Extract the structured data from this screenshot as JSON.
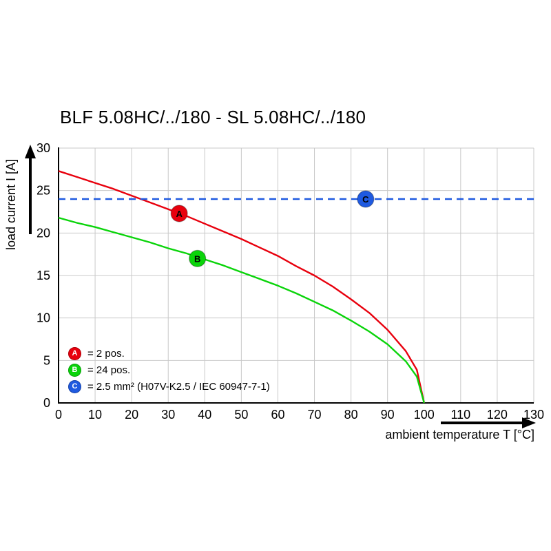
{
  "title": "BLF 5.08HC/../180 - SL 5.08HC/../180",
  "chart_data": {
    "type": "line",
    "title": "BLF 5.08HC/../180 - SL 5.08HC/../180",
    "xlabel": "ambient temperature T [°C]",
    "ylabel": "load current I [A]",
    "xlim": [
      0,
      130
    ],
    "ylim": [
      0,
      30
    ],
    "xticks": [
      0,
      10,
      20,
      30,
      40,
      50,
      60,
      70,
      80,
      90,
      100,
      110,
      120,
      130
    ],
    "yticks": [
      0,
      5,
      10,
      15,
      20,
      25,
      30
    ],
    "grid": true,
    "legend_position": "lower left",
    "series": [
      {
        "name": "A",
        "label": "= 2 pos.",
        "color": "#e8000d",
        "style": "solid",
        "x": [
          0,
          5,
          10,
          15,
          20,
          25,
          30,
          35,
          40,
          45,
          50,
          55,
          60,
          65,
          70,
          75,
          80,
          85,
          90,
          95,
          98,
          100
        ],
        "y": [
          27.3,
          26.6,
          25.9,
          25.2,
          24.4,
          23.6,
          22.8,
          22.0,
          21.1,
          20.2,
          19.3,
          18.3,
          17.3,
          16.1,
          15.0,
          13.7,
          12.2,
          10.6,
          8.6,
          6.1,
          3.9,
          0
        ]
      },
      {
        "name": "B",
        "label": "= 24 pos.",
        "color": "#0ad40a",
        "style": "solid",
        "x": [
          0,
          5,
          10,
          15,
          20,
          25,
          30,
          35,
          40,
          45,
          50,
          55,
          60,
          65,
          70,
          75,
          80,
          85,
          90,
          95,
          98,
          100
        ],
        "y": [
          21.8,
          21.2,
          20.7,
          20.1,
          19.5,
          18.9,
          18.2,
          17.6,
          16.9,
          16.2,
          15.4,
          14.6,
          13.8,
          12.9,
          11.9,
          10.9,
          9.7,
          8.4,
          6.9,
          4.9,
          3.1,
          0
        ]
      },
      {
        "name": "C",
        "label": "= 2.5 mm² (H07V-K2.5 / IEC 60947-7-1)",
        "color": "#1f5ae0",
        "style": "dashed",
        "x": [
          0,
          130
        ],
        "y": [
          24,
          24
        ]
      }
    ],
    "markers": [
      {
        "series": "A",
        "x": 33,
        "y": 22.3
      },
      {
        "series": "B",
        "x": 38,
        "y": 17.0
      },
      {
        "series": "C",
        "x": 84,
        "y": 24.0
      }
    ]
  }
}
